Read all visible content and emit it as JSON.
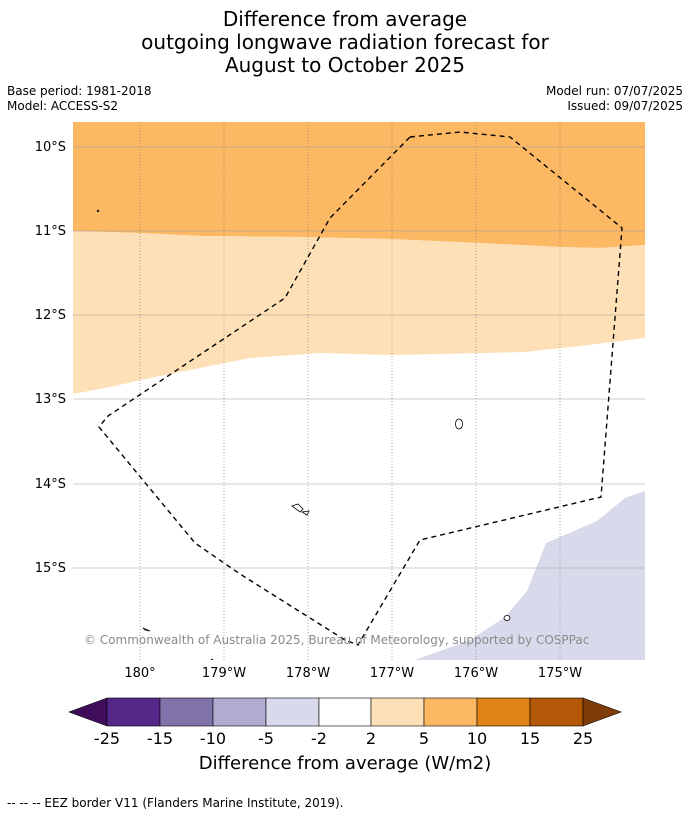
{
  "title": {
    "line1": "Difference from average",
    "line2": "outgoing longwave radiation forecast for",
    "line3": "August to October 2025"
  },
  "meta_left": {
    "base_period": "Base period: 1981-2018",
    "model": "Model: ACCESS-S2"
  },
  "meta_right": {
    "model_run": "Model run: 07/07/2025",
    "issued": "Issued: 09/07/2025"
  },
  "map": {
    "lat_labels": [
      "10°S",
      "11°S",
      "12°S",
      "13°S",
      "14°S",
      "15°S"
    ],
    "lon_labels": [
      "180°",
      "179°W",
      "178°W",
      "177°W",
      "176°W",
      "175°W"
    ],
    "credit": "© Commonwealth of Australia 2025, Bureau of Meteorology, supported by COSPPac",
    "fill_colors": {
      "band_5_10": "#fdb863",
      "band_2_5": "#fee0b6",
      "band_neg5_neg2": "#d8daeb"
    }
  },
  "colorbar": {
    "ticks": [
      "-25",
      "-15",
      "-10",
      "-5",
      "-2",
      "2",
      "5",
      "10",
      "15",
      "25"
    ],
    "colors": [
      "#3f0d5a",
      "#542788",
      "#8073ac",
      "#b2abd2",
      "#d8daeb",
      "#ffffff",
      "#fee0b6",
      "#fdb863",
      "#e08214",
      "#b35806",
      "#7f3b08"
    ],
    "title": "Difference from average (W/m2)"
  },
  "footnote": "--  --  -- EEZ border V11 (Flanders Marine Institute, 2019)."
}
